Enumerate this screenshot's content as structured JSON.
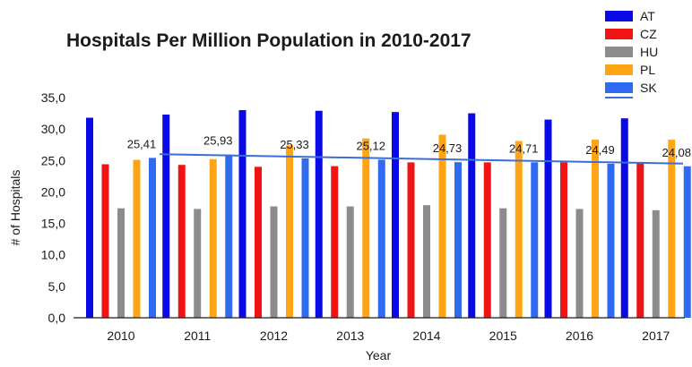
{
  "chart_data": {
    "type": "bar",
    "title": "Hospitals Per Million Population in 2010-2017",
    "xlabel": "Year",
    "ylabel": "# of Hospitals",
    "ylim": [
      0,
      35
    ],
    "yticks": [
      "0,0",
      "5,0",
      "10,0",
      "15,0",
      "20,0",
      "25,0",
      "30,0",
      "35,0"
    ],
    "categories": [
      "2010",
      "2011",
      "2012",
      "2013",
      "2014",
      "2015",
      "2016",
      "2017"
    ],
    "series": [
      {
        "name": "AT",
        "color": "#0a0ae6",
        "values": [
          31.8,
          32.3,
          33.0,
          32.9,
          32.7,
          32.5,
          31.5,
          31.7
        ]
      },
      {
        "name": "CZ",
        "color": "#f01414",
        "values": [
          24.4,
          24.3,
          24.0,
          24.1,
          24.7,
          24.7,
          24.7,
          24.6
        ]
      },
      {
        "name": "HU",
        "color": "#8c8c8c",
        "values": [
          17.4,
          17.3,
          17.7,
          17.7,
          17.9,
          17.4,
          17.3,
          17.1
        ]
      },
      {
        "name": "PL",
        "color": "#ffa514",
        "values": [
          25.1,
          25.2,
          27.4,
          28.5,
          29.1,
          28.1,
          28.3,
          28.3
        ]
      },
      {
        "name": "SK",
        "color": "#2f6bf0",
        "values": [
          25.41,
          25.93,
          25.33,
          25.12,
          24.73,
          24.71,
          24.49,
          24.08
        ]
      }
    ],
    "data_labels": [
      "25,41",
      "25,93",
      "25,33",
      "25,12",
      "24,73",
      "24,71",
      "24,49",
      "24,08"
    ],
    "trendline": {
      "series": "SK",
      "color": "#3a6ed8",
      "start": 26.0,
      "end": 24.5
    },
    "grid": false,
    "legend_position": "top-right"
  }
}
